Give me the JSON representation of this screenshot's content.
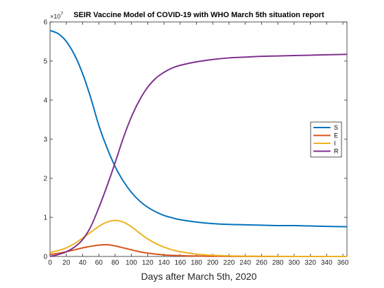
{
  "chart_data": {
    "type": "line",
    "title": "SEIR Vaccine Model of COVID-19 with WHO March 5th situation report",
    "xlabel": "Days after March 5th, 2020",
    "ylabel": "",
    "y_exponent_label": "×10",
    "y_exponent_power": "7",
    "xlim": [
      0,
      365
    ],
    "ylim": [
      0,
      6
    ],
    "y_scale_factor": 10000000,
    "x_ticks": [
      0,
      20,
      40,
      60,
      80,
      100,
      120,
      140,
      160,
      180,
      200,
      220,
      240,
      260,
      280,
      300,
      320,
      340,
      360
    ],
    "y_ticks": [
      0,
      1,
      2,
      3,
      4,
      5,
      6
    ],
    "grid": false,
    "legend_position": "right",
    "x": [
      0,
      10,
      20,
      30,
      40,
      50,
      60,
      70,
      80,
      90,
      100,
      110,
      120,
      130,
      140,
      150,
      160,
      180,
      200,
      220,
      240,
      260,
      280,
      300,
      320,
      340,
      365
    ],
    "series": [
      {
        "name": "S",
        "color": "#0072BD",
        "values": [
          5.78,
          5.7,
          5.5,
          5.16,
          4.68,
          4.06,
          3.35,
          2.78,
          2.3,
          1.93,
          1.64,
          1.42,
          1.26,
          1.14,
          1.05,
          0.99,
          0.94,
          0.88,
          0.84,
          0.82,
          0.81,
          0.8,
          0.79,
          0.79,
          0.78,
          0.77,
          0.76
        ]
      },
      {
        "name": "E",
        "color": "#D95319",
        "values": [
          0.05,
          0.08,
          0.12,
          0.17,
          0.22,
          0.26,
          0.29,
          0.3,
          0.27,
          0.22,
          0.17,
          0.12,
          0.085,
          0.06,
          0.04,
          0.028,
          0.02,
          0.01,
          0.005,
          0.003,
          0.002,
          0.001,
          0.0,
          0.0,
          0.0,
          0.0,
          0.0
        ]
      },
      {
        "name": "I",
        "color": "#EDB120",
        "values": [
          0.1,
          0.15,
          0.22,
          0.33,
          0.47,
          0.62,
          0.77,
          0.88,
          0.92,
          0.88,
          0.76,
          0.6,
          0.45,
          0.33,
          0.24,
          0.17,
          0.12,
          0.06,
          0.03,
          0.015,
          0.008,
          0.004,
          0.002,
          0.001,
          0.0,
          0.0,
          0.0
        ]
      },
      {
        "name": "R",
        "color": "#7E2F8E",
        "values": [
          0.0,
          0.05,
          0.12,
          0.24,
          0.43,
          0.76,
          1.25,
          1.8,
          2.4,
          3.03,
          3.57,
          4.0,
          4.33,
          4.56,
          4.71,
          4.82,
          4.89,
          4.98,
          5.04,
          5.08,
          5.1,
          5.12,
          5.13,
          5.14,
          5.15,
          5.16,
          5.17
        ]
      }
    ]
  }
}
